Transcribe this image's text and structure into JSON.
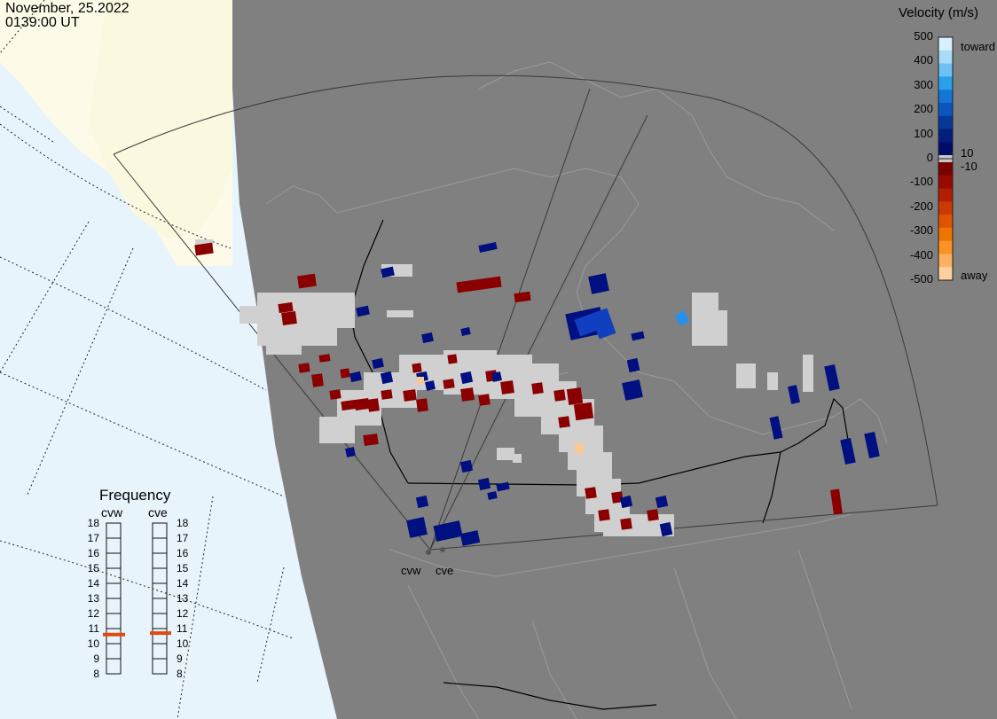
{
  "header": {
    "date": "November, 25.2022",
    "time": "0139:00 UT"
  },
  "velocity_scale": {
    "title": "Velocity (m/s)",
    "ticks": [
      "500",
      "400",
      "300",
      "200",
      "100",
      "0",
      "-100",
      "-200",
      "-300",
      "-400",
      "-500"
    ],
    "toward_label": "toward",
    "away_label": "away",
    "pos_threshold": "10",
    "neg_threshold": "-10",
    "colors": {
      "toward": [
        "#d8f0ff",
        "#a8dcf8",
        "#6cc2f2",
        "#28a0ec",
        "#1476d8",
        "#0a56c0",
        "#06389a",
        "#041e80",
        "#000c6a"
      ],
      "away": [
        "#7c0000",
        "#980a00",
        "#b41e00",
        "#cc3800",
        "#e05400",
        "#f07400",
        "#fa9224",
        "#fcb060",
        "#fed0a0"
      ]
    }
  },
  "frequency_panel": {
    "title": "Frequency",
    "left_label": "cvw",
    "right_label": "cve",
    "ticks": [
      "18",
      "17",
      "16",
      "15",
      "14",
      "13",
      "12",
      "11",
      "10",
      "9",
      "8"
    ],
    "cvw_mhz": 10.6,
    "cve_mhz": 10.7,
    "marker_color": "#e04a10"
  },
  "radars": [
    {
      "id": "cvw",
      "label": "cvw"
    },
    {
      "id": "cve",
      "label": "cve"
    }
  ],
  "map": {
    "ocean_color": "#e8f4fc",
    "land_outside_color": "#fdfbe8",
    "night_color": "#808080",
    "grid_line_color": "#3a3a3a",
    "outline_color": "#9a9a9a"
  }
}
